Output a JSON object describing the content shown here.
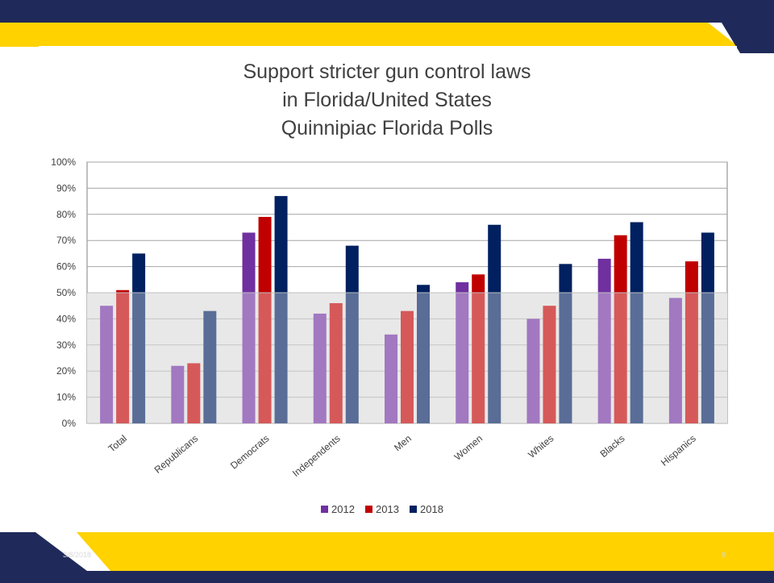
{
  "slide": {
    "footer_date": "3/8/2018",
    "page_number": "9",
    "colors": {
      "navy": "#1f2a5a",
      "gold": "#ffd200"
    }
  },
  "chart_data": {
    "type": "bar",
    "title_lines": [
      "Support stricter gun control laws",
      "in Florida/United States",
      "Quinnipiac Florida Polls"
    ],
    "categories": [
      "Total",
      "Republicans",
      "Democrats",
      "Independents",
      "Men",
      "Women",
      "Whites",
      "Blacks",
      "Hispanics"
    ],
    "series": [
      {
        "name": "2012",
        "color": "#7030a0",
        "values": [
          45,
          22,
          73,
          42,
          34,
          54,
          40,
          63,
          48
        ]
      },
      {
        "name": "2013",
        "color": "#c00000",
        "values": [
          51,
          23,
          79,
          46,
          43,
          57,
          45,
          72,
          62
        ]
      },
      {
        "name": "2018",
        "color": "#002060",
        "values": [
          65,
          43,
          87,
          68,
          53,
          76,
          61,
          77,
          73
        ]
      }
    ],
    "ylim": [
      0,
      100
    ],
    "yticks": [
      "0%",
      "10%",
      "20%",
      "30%",
      "40%",
      "50%",
      "60%",
      "70%",
      "80%",
      "90%",
      "100%"
    ],
    "grid": true,
    "legend": "bottom",
    "shaded_band": {
      "from": 0,
      "to": 50,
      "color": "#dcdcdc"
    }
  }
}
